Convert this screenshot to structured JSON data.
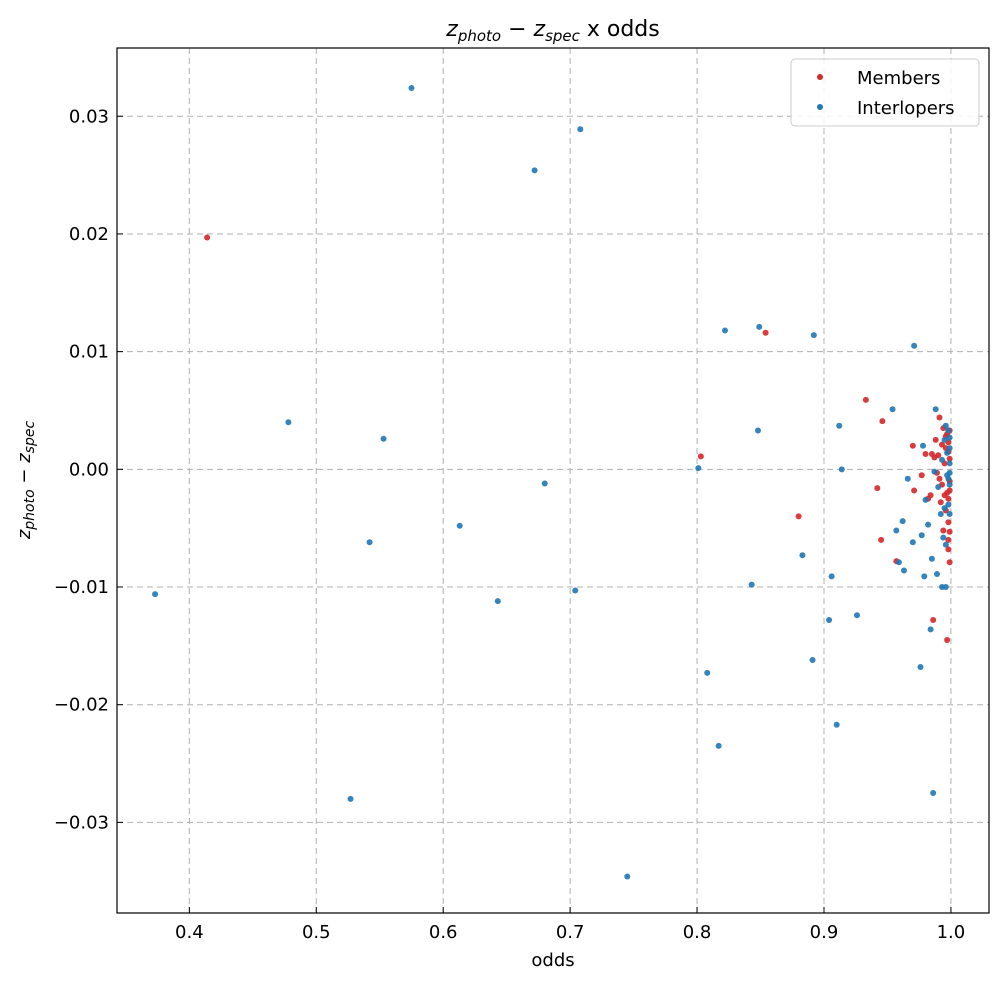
{
  "chart_data": {
    "type": "scatter",
    "title": {
      "z1": "z",
      "z1_sub": "photo",
      "minus": " − ",
      "z2": "z",
      "z2_sub": "spec",
      "rest": " x odds"
    },
    "xlabel": "odds",
    "ylabel": {
      "z1": "z",
      "z1_sub": "photo",
      "minus": " − ",
      "z2": "z",
      "z2_sub": "spec"
    },
    "xlim": [
      0.343,
      1.03
    ],
    "ylim": [
      -0.0377,
      0.0358
    ],
    "xticks": [
      0.4,
      0.5,
      0.6,
      0.7,
      0.8,
      0.9,
      1.0
    ],
    "xtick_labels": [
      "0.4",
      "0.5",
      "0.6",
      "0.7",
      "0.8",
      "0.9",
      "1.0"
    ],
    "yticks": [
      0.03,
      0.02,
      0.01,
      0.0,
      -0.01,
      -0.02,
      -0.03
    ],
    "ytick_labels": [
      "0.03",
      "0.02",
      "0.01",
      "0.00",
      "−0.01",
      "−0.02",
      "−0.03"
    ],
    "grid": true,
    "legend_position": "top-right",
    "series": [
      {
        "name": "Members",
        "color": "#d62728",
        "points": [
          [
            0.414,
            0.0197
          ],
          [
            0.803,
            0.0011
          ],
          [
            0.854,
            0.0116
          ],
          [
            0.88,
            -0.004
          ],
          [
            0.933,
            0.0059
          ],
          [
            0.942,
            -0.0016
          ],
          [
            0.945,
            -0.006
          ],
          [
            0.946,
            0.0041
          ],
          [
            0.957,
            -0.0078
          ],
          [
            0.97,
            0.002
          ],
          [
            0.971,
            -0.0018
          ],
          [
            0.977,
            -0.0005
          ],
          [
            0.98,
            0.0013
          ],
          [
            0.982,
            -0.0025
          ],
          [
            0.984,
            -0.0022
          ],
          [
            0.985,
            0.0013
          ],
          [
            0.986,
            -0.0128
          ],
          [
            0.987,
            0.001
          ],
          [
            0.988,
            0.0025
          ],
          [
            0.989,
            -0.0003
          ],
          [
            0.99,
            0.0012
          ],
          [
            0.991,
            -0.0008
          ],
          [
            0.991,
            0.0044
          ],
          [
            0.992,
            -0.0028
          ],
          [
            0.993,
            0.0021
          ],
          [
            0.993,
            -0.0013
          ],
          [
            0.994,
            0.0035
          ],
          [
            0.994,
            -0.0052
          ],
          [
            0.995,
            0.0005
          ],
          [
            0.995,
            -0.0022
          ],
          [
            0.996,
            0.0028
          ],
          [
            0.996,
            -0.0035
          ],
          [
            0.996,
            0.0018
          ],
          [
            0.997,
            -0.0145
          ],
          [
            0.997,
            0.003
          ],
          [
            0.997,
            -0.002
          ],
          [
            0.998,
            -0.0045
          ],
          [
            0.998,
            0.0015
          ],
          [
            0.998,
            -0.0025
          ],
          [
            0.998,
            -0.006
          ],
          [
            0.998,
            -0.0068
          ],
          [
            0.998,
            0.0023
          ],
          [
            0.999,
            -0.0018
          ],
          [
            0.999,
            -0.0079
          ],
          [
            0.999,
            0.0033
          ],
          [
            0.999,
            -0.001
          ],
          [
            0.999,
            -0.0053
          ],
          [
            0.999,
            0.0009
          ]
        ]
      },
      {
        "name": "Interlopers",
        "color": "#1f77b4",
        "points": [
          [
            0.373,
            -0.0106
          ],
          [
            0.478,
            0.004
          ],
          [
            0.527,
            -0.028
          ],
          [
            0.542,
            -0.0062
          ],
          [
            0.553,
            0.0026
          ],
          [
            0.575,
            0.0324
          ],
          [
            0.613,
            -0.0048
          ],
          [
            0.643,
            -0.0112
          ],
          [
            0.672,
            0.0254
          ],
          [
            0.68,
            -0.0012
          ],
          [
            0.704,
            -0.0103
          ],
          [
            0.708,
            0.0289
          ],
          [
            0.745,
            -0.0346
          ],
          [
            0.801,
            0.0001
          ],
          [
            0.808,
            -0.0173
          ],
          [
            0.817,
            -0.0235
          ],
          [
            0.822,
            0.0118
          ],
          [
            0.843,
            -0.0098
          ],
          [
            0.848,
            0.0033
          ],
          [
            0.849,
            0.0121
          ],
          [
            0.883,
            -0.0073
          ],
          [
            0.891,
            -0.0162
          ],
          [
            0.892,
            0.0114
          ],
          [
            0.904,
            -0.0128
          ],
          [
            0.906,
            -0.0091
          ],
          [
            0.91,
            -0.0217
          ],
          [
            0.912,
            0.0037
          ],
          [
            0.914,
            0.0
          ],
          [
            0.926,
            -0.0124
          ],
          [
            0.954,
            0.0051
          ],
          [
            0.957,
            -0.0052
          ],
          [
            0.959,
            -0.0079
          ],
          [
            0.962,
            -0.0044
          ],
          [
            0.963,
            -0.0086
          ],
          [
            0.966,
            -0.0008
          ],
          [
            0.97,
            -0.0062
          ],
          [
            0.971,
            0.0105
          ],
          [
            0.976,
            -0.0168
          ],
          [
            0.977,
            -0.0056
          ],
          [
            0.978,
            0.002
          ],
          [
            0.979,
            -0.0091
          ],
          [
            0.98,
            -0.0026
          ],
          [
            0.982,
            -0.0047
          ],
          [
            0.984,
            -0.0136
          ],
          [
            0.985,
            -0.0076
          ],
          [
            0.986,
            -0.0275
          ],
          [
            0.987,
            -0.0002
          ],
          [
            0.988,
            0.0051
          ],
          [
            0.989,
            -0.0089
          ],
          [
            0.99,
            -0.0015
          ],
          [
            0.992,
            -0.0038
          ],
          [
            0.993,
            -0.01
          ],
          [
            0.993,
            0.0008
          ],
          [
            0.994,
            -0.0058
          ],
          [
            0.995,
            -0.0033
          ],
          [
            0.995,
            0.0025
          ],
          [
            0.996,
            -0.0064
          ],
          [
            0.996,
            -0.01
          ],
          [
            0.996,
            0.0037
          ],
          [
            0.997,
            0.0014
          ],
          [
            0.997,
            -0.0005
          ],
          [
            0.998,
            -0.003
          ],
          [
            0.998,
            0.0033
          ],
          [
            0.998,
            -0.0008
          ],
          [
            0.999,
            0.0005
          ],
          [
            0.999,
            -0.0013
          ],
          [
            0.999,
            0.0018
          ],
          [
            0.999,
            -0.0038
          ],
          [
            0.999,
            -0.0003
          ],
          [
            0.999,
            0.0027
          ]
        ]
      }
    ]
  }
}
